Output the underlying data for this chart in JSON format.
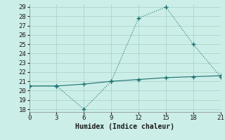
{
  "xlabel": "Humidex (Indice chaleur)",
  "x": [
    0,
    3,
    6,
    9,
    12,
    15,
    18,
    21
  ],
  "line1_y": [
    20.5,
    20.5,
    18.0,
    21.0,
    27.8,
    29.0,
    25.0,
    21.5
  ],
  "line2_y": [
    20.5,
    20.5,
    20.7,
    21.0,
    21.2,
    21.4,
    21.5,
    21.6
  ],
  "line_color": "#1a7070",
  "bg_color": "#cceee8",
  "grid_color": "#b0d8d0",
  "ylim_min": 18,
  "ylim_max": 29,
  "xlim_min": 0,
  "xlim_max": 21,
  "yticks": [
    18,
    19,
    20,
    21,
    22,
    23,
    24,
    25,
    26,
    27,
    28,
    29
  ],
  "xticks": [
    0,
    3,
    6,
    9,
    12,
    15,
    18,
    21
  ],
  "marker": "+",
  "marker_size": 4,
  "line_width": 0.8,
  "tick_fontsize": 6.5,
  "xlabel_fontsize": 7
}
